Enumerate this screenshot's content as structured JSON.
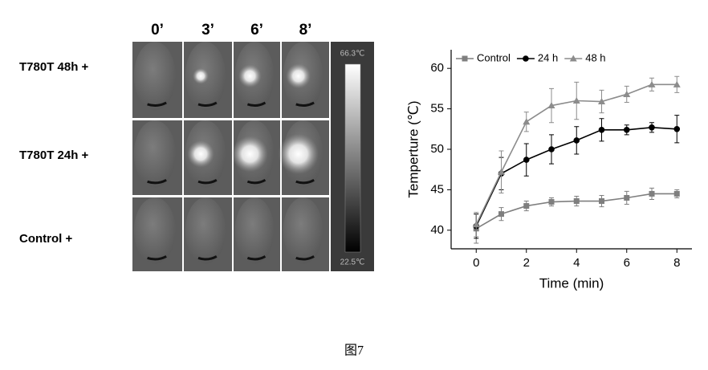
{
  "figure": {
    "column_headers": [
      "0’",
      "3’",
      "6’",
      "8’"
    ],
    "row_labels": [
      "T780T 48h +",
      "T780T 24h +",
      "Control +"
    ],
    "colorbar": {
      "max_label": "66.3℃",
      "min_label": "22.5℃"
    },
    "caption": "图7"
  },
  "chart_data": {
    "type": "line",
    "x_label": "Time (min)",
    "y_label": "Temperture (℃)",
    "x": [
      0,
      1,
      2,
      3,
      4,
      5,
      6,
      7,
      8
    ],
    "series": [
      {
        "name": "Control",
        "color": "#7f7f7f",
        "marker": "square",
        "values": [
          40.2,
          42,
          43,
          43.5,
          43.6,
          43.6,
          44,
          44.5,
          44.5
        ],
        "errors": [
          1.8,
          0.8,
          0.6,
          0.5,
          0.6,
          0.7,
          0.8,
          0.7,
          0.5
        ]
      },
      {
        "name": "24 h",
        "color": "#000000",
        "marker": "circle",
        "values": [
          40.5,
          47,
          48.7,
          50,
          51.1,
          52.4,
          52.4,
          52.7,
          52.5
        ],
        "errors": [
          1.5,
          2,
          2,
          1.8,
          1.7,
          1.4,
          0.6,
          0.6,
          1.7
        ]
      },
      {
        "name": "48 h",
        "color": "#8c8c8c",
        "marker": "triangle",
        "values": [
          40.7,
          47.2,
          53.4,
          55.4,
          56,
          55.9,
          56.8,
          58,
          58
        ],
        "errors": [
          1.5,
          2.6,
          1.2,
          2.1,
          2.3,
          1.4,
          1.0,
          0.8,
          1.0
        ]
      }
    ],
    "xlim": [
      -1,
      8.6
    ],
    "xticks": [
      0,
      2,
      4,
      6,
      8
    ],
    "ylim": [
      37.7,
      62.3
    ],
    "yticks": [
      40,
      45,
      50,
      55,
      60
    ],
    "legend": "top-left"
  }
}
